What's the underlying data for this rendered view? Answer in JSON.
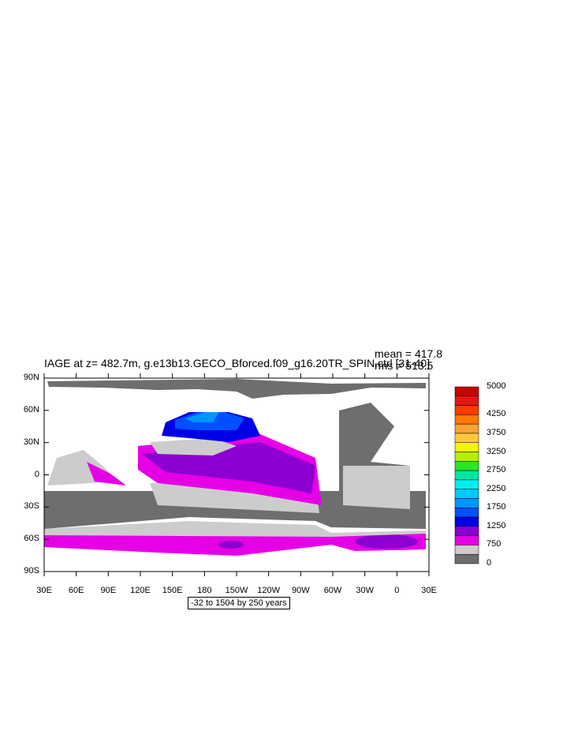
{
  "title": "IAGE at z= 482.7m, g.e13b13.GECO_Bforced.f09_g16.20TR_SPIN.ctrl [31-40]",
  "stats": {
    "mean": "mean = 417.8",
    "rms": "rms = 513.5"
  },
  "lat_labels": [
    "90N",
    "60N",
    "30N",
    "0",
    "30S",
    "60S",
    "90S"
  ],
  "lon_labels": [
    "30E",
    "60E",
    "90E",
    "120E",
    "150E",
    "180",
    "150W",
    "120W",
    "90W",
    "60W",
    "30W",
    "0",
    "30E"
  ],
  "contour_info": "-32 to 1504 by 250 years",
  "colorbar": {
    "labels": [
      "5000",
      "4250",
      "3750",
      "3250",
      "2750",
      "2250",
      "1750",
      "1250",
      "750",
      "0"
    ],
    "colors": [
      "#c80000",
      "#e61414",
      "#ff3c00",
      "#ff7800",
      "#ffa032",
      "#ffc83c",
      "#f5f50a",
      "#b4f000",
      "#28e628",
      "#00e6a0",
      "#00f0f0",
      "#00c8ff",
      "#0096ff",
      "#0050ff",
      "#0000e6",
      "#8c00d2",
      "#e600e6",
      "#cccccc",
      "#6e6e6e"
    ]
  }
}
